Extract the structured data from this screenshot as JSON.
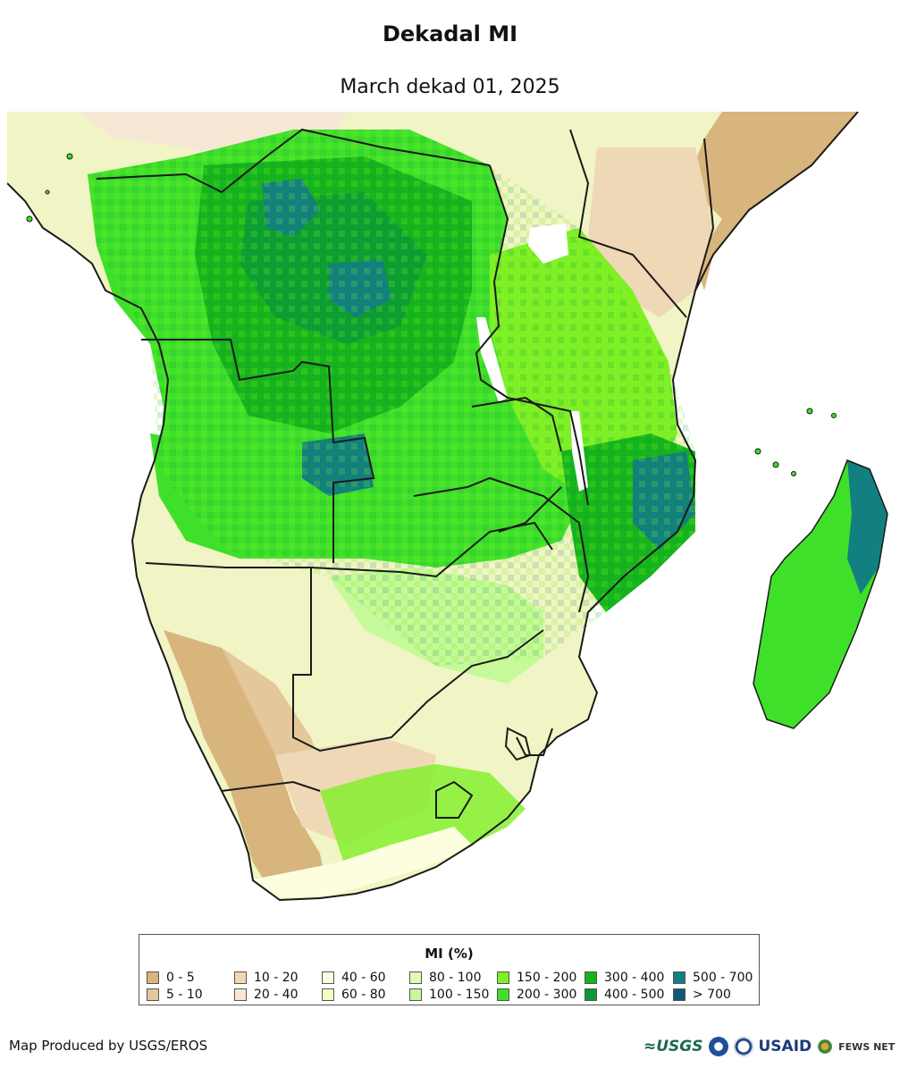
{
  "header": {
    "title": "Dekadal MI",
    "subtitle": "March dekad 01, 2025"
  },
  "map": {
    "region": "Southern Africa",
    "colors": {
      "background": "#ffffff",
      "border": "#1a1a1a",
      "water": "#ffffff"
    }
  },
  "legend": {
    "title": "MI (%)",
    "items": [
      {
        "label": "0 - 5",
        "color": "#d7b57c"
      },
      {
        "label": "5 - 10",
        "color": "#e4c79a"
      },
      {
        "label": "10 - 20",
        "color": "#efd8b6"
      },
      {
        "label": "20 - 40",
        "color": "#f6e8d4"
      },
      {
        "label": "40 - 60",
        "color": "#fdfde0"
      },
      {
        "label": "60 - 80",
        "color": "#f6fcc0"
      },
      {
        "label": "80 - 100",
        "color": "#e0fbb4"
      },
      {
        "label": "100 - 150",
        "color": "#c6f99a"
      },
      {
        "label": "150 - 200",
        "color": "#7ef025"
      },
      {
        "label": "200 - 300",
        "color": "#3fe02a"
      },
      {
        "label": "300 - 400",
        "color": "#16b51c"
      },
      {
        "label": "400 - 500",
        "color": "#0a9a36"
      },
      {
        "label": "500 - 700",
        "color": "#127f80"
      },
      {
        "label": "> 700",
        "color": "#0f5878"
      }
    ]
  },
  "footer": {
    "credit": "Map Produced by USGS/EROS",
    "logos": {
      "usgs": "≈USGS",
      "usaid": "USAID",
      "fews": "FEWS NET"
    }
  }
}
